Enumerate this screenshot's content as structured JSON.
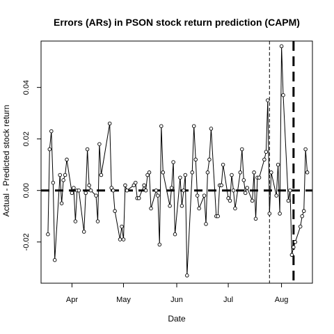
{
  "chart_data": {
    "type": "line",
    "title": "Errors (ARs) in PSON stock return prediction (CAPM)",
    "xlabel": "Date",
    "ylabel": "Actual - Predicted stock return",
    "x_ticks": [
      "Apr",
      "May",
      "Jun",
      "Jul",
      "Aug"
    ],
    "y_ticks": [
      "-0.02",
      "0.00",
      "0.02",
      "0.04"
    ],
    "ylim": [
      -0.036,
      0.058
    ],
    "x_domain": [
      "2019-03-14",
      "2019-08-19"
    ],
    "reference_lines": {
      "zero_line": 0.0,
      "event_window_start": "2019-07-25",
      "event_date": "2019-08-08"
    },
    "series": [
      {
        "x": [
          "2019-03-18",
          "2019-03-19",
          "2019-03-20",
          "2019-03-21",
          "2019-03-22",
          "2019-03-25",
          "2019-03-26",
          "2019-03-27",
          "2019-03-28",
          "2019-03-29",
          "2019-04-01",
          "2019-04-02",
          "2019-04-03",
          "2019-04-04",
          "2019-04-05",
          "2019-04-08",
          "2019-04-09",
          "2019-04-10",
          "2019-04-11",
          "2019-04-12",
          "2019-04-15",
          "2019-04-16",
          "2019-04-17",
          "2019-04-18",
          "2019-04-23",
          "2019-04-24",
          "2019-04-25",
          "2019-04-26",
          "2019-04-29",
          "2019-04-30",
          "2019-05-01",
          "2019-05-02",
          "2019-05-03",
          "2019-05-07",
          "2019-05-08",
          "2019-05-09",
          "2019-05-10",
          "2019-05-13",
          "2019-05-14",
          "2019-05-15",
          "2019-05-16",
          "2019-05-17",
          "2019-05-20",
          "2019-05-21",
          "2019-05-22",
          "2019-05-23",
          "2019-05-24",
          "2019-05-28",
          "2019-05-29",
          "2019-05-30",
          "2019-05-31",
          "2019-06-03",
          "2019-06-04",
          "2019-06-05",
          "2019-06-06",
          "2019-06-07",
          "2019-06-10",
          "2019-06-11",
          "2019-06-12",
          "2019-06-13",
          "2019-06-14",
          "2019-06-17",
          "2019-06-18",
          "2019-06-19",
          "2019-06-20",
          "2019-06-21",
          "2019-06-24",
          "2019-06-25",
          "2019-06-26",
          "2019-06-27",
          "2019-06-28",
          "2019-07-01",
          "2019-07-02",
          "2019-07-03",
          "2019-07-04",
          "2019-07-05",
          "2019-07-08",
          "2019-07-09",
          "2019-07-10",
          "2019-07-11",
          "2019-07-12",
          "2019-07-15",
          "2019-07-16",
          "2019-07-17",
          "2019-07-18",
          "2019-07-19",
          "2019-07-22",
          "2019-07-23",
          "2019-07-24",
          "2019-07-25",
          "2019-07-26",
          "2019-07-29",
          "2019-07-30",
          "2019-07-31",
          "2019-08-01",
          "2019-08-02",
          "2019-08-05",
          "2019-08-06",
          "2019-08-07",
          "2019-08-08",
          "2019-08-09",
          "2019-08-12",
          "2019-08-13",
          "2019-08-14",
          "2019-08-15",
          "2019-08-16"
        ],
        "y": [
          -0.017,
          0.016,
          0.023,
          0.003,
          -0.027,
          0.006,
          -0.005,
          0.004,
          0.006,
          0.012,
          -0.001,
          0.001,
          -0.012,
          0.0,
          0.0,
          -0.016,
          -0.001,
          0.016,
          0.002,
          0.0,
          -0.002,
          -0.012,
          0.018,
          0.006,
          0.026,
          0.001,
          0.0,
          -0.008,
          -0.019,
          -0.014,
          -0.019,
          0.002,
          0.0,
          0.002,
          0.003,
          -0.003,
          -0.003,
          0.002,
          0.0,
          0.006,
          0.007,
          -0.007,
          0.0,
          -0.002,
          -0.021,
          0.025,
          0.007,
          -0.006,
          0.001,
          0.011,
          -0.017,
          0.005,
          -0.006,
          0.0,
          0.006,
          -0.033,
          0.007,
          0.025,
          0.012,
          -0.002,
          -0.007,
          -0.002,
          -0.013,
          0.007,
          0.012,
          0.024,
          -0.01,
          -0.01,
          0.002,
          0.002,
          0.01,
          -0.003,
          -0.004,
          0.006,
          0.0,
          -0.007,
          0.007,
          0.016,
          0.004,
          -0.001,
          0.001,
          -0.004,
          0.007,
          -0.011,
          0.005,
          0.005,
          0.012,
          0.015,
          0.035,
          -0.009,
          0.007,
          -0.002,
          0.01,
          -0.009,
          0.056,
          0.037,
          -0.004,
          0.0,
          -0.025,
          -0.022,
          -0.02,
          -0.014,
          -0.01,
          -0.008,
          0.016,
          0.007
        ]
      }
    ]
  }
}
